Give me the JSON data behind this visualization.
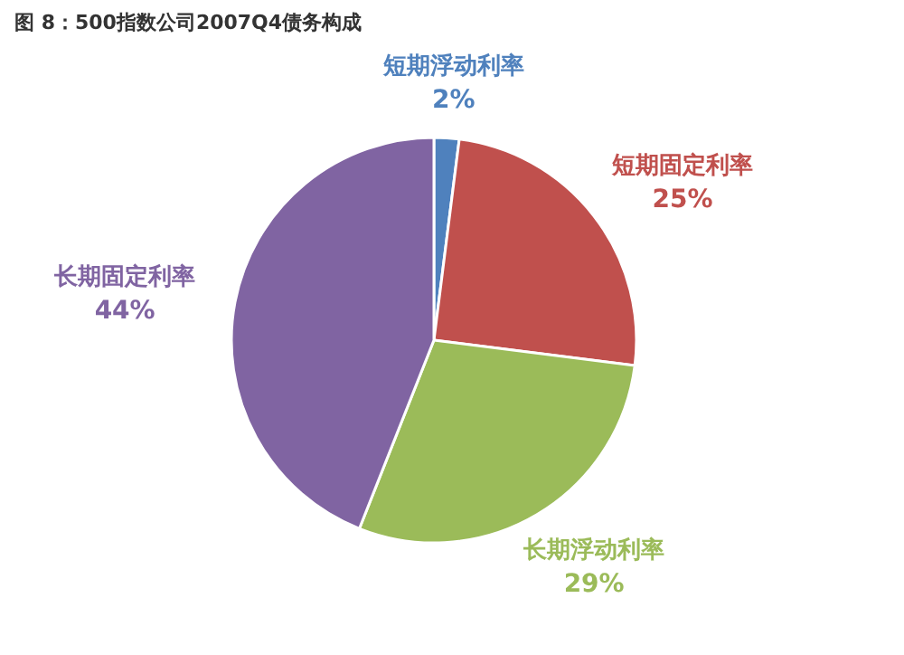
{
  "chart_data": {
    "type": "pie",
    "title": "图 8：500指数公司2007Q4债务构成",
    "categories": [
      "短期浮动利率",
      "短期固定利率",
      "长期浮动利率",
      "长期固定利率"
    ],
    "values": [
      2,
      25,
      29,
      44
    ],
    "colors": [
      "#4f81bd",
      "#c0504d",
      "#9bbb59",
      "#8064a2"
    ],
    "value_labels": [
      "2%",
      "25%",
      "29%",
      "44%"
    ]
  }
}
